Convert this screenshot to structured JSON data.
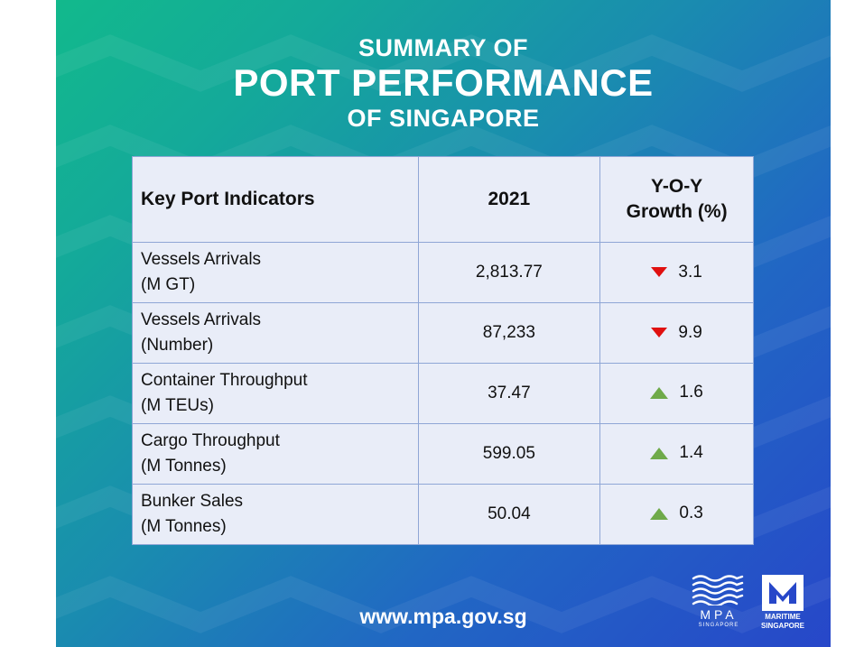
{
  "header": {
    "line1": "SUMMARY OF",
    "line2": "PORT PERFORMANCE",
    "line3": "OF SINGAPORE"
  },
  "table": {
    "columns": [
      "Key Port Indicators",
      "2021",
      "Y-O-Y",
      "Growth (%)"
    ],
    "rows": [
      {
        "label1": "Vessels Arrivals",
        "label2": "(M GT)",
        "value": "2,813.77",
        "direction": "down",
        "growth": "3.1"
      },
      {
        "label1": "Vessels Arrivals",
        "label2": "(Number)",
        "value": "87,233",
        "direction": "down",
        "growth": "9.9"
      },
      {
        "label1": "Container Throughput",
        "label2": "(M TEUs)",
        "value": "37.47",
        "direction": "up",
        "growth": "1.6"
      },
      {
        "label1": "Cargo Throughput",
        "label2": "(M Tonnes)",
        "value": "599.05",
        "direction": "up",
        "growth": "1.4"
      },
      {
        "label1": "Bunker Sales",
        "label2": "(M Tonnes)",
        "value": "50.04",
        "direction": "up",
        "growth": "0.3"
      }
    ]
  },
  "colors": {
    "down": "#e01010",
    "up": "#6faa4a",
    "table_bg": "#e9edf8",
    "border": "#8fa6d6"
  },
  "footer": {
    "website": "www.mpa.gov.sg"
  },
  "logos": {
    "mpa_text": "MPA",
    "mpa_sub": "SINGAPORE",
    "ms_line1": "MARITIME",
    "ms_line2": "SINGAPORE"
  }
}
